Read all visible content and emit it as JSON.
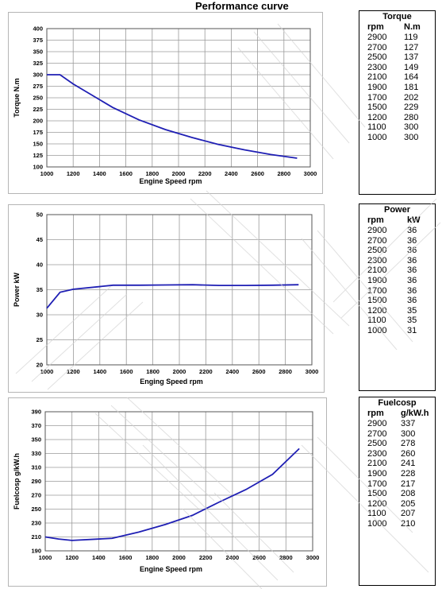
{
  "page_title": "Performance curve",
  "chart_data": [
    {
      "type": "line",
      "xlabel": "Engine Speed rpm",
      "ylabel": "Torque N.m",
      "xlim": [
        1000,
        3000
      ],
      "ylim": [
        100,
        400
      ],
      "xticks": [
        1000,
        1200,
        1400,
        1600,
        1800,
        2000,
        2200,
        2400,
        2600,
        2800,
        3000
      ],
      "yticks": [
        100,
        125,
        150,
        175,
        200,
        225,
        250,
        275,
        300,
        325,
        350,
        375,
        400
      ],
      "grid": true,
      "line_color": "#1f1fb4",
      "x": [
        1000,
        1100,
        1200,
        1500,
        1700,
        1900,
        2100,
        2300,
        2500,
        2700,
        2900
      ],
      "y": [
        300,
        300,
        280,
        229,
        202,
        181,
        164,
        149,
        137,
        127,
        119
      ]
    },
    {
      "type": "line",
      "xlabel": "Enging Speed rpm",
      "ylabel": "Power kW",
      "xlim": [
        1000,
        3000
      ],
      "ylim": [
        20,
        50
      ],
      "xticks": [
        1000,
        1200,
        1400,
        1600,
        1800,
        2000,
        2200,
        2400,
        2600,
        2800,
        3000
      ],
      "yticks": [
        20,
        25,
        30,
        35,
        40,
        45,
        50
      ],
      "grid": true,
      "line_color": "#1f1fb4",
      "x": [
        1000,
        1100,
        1200,
        1500,
        1700,
        1900,
        2100,
        2300,
        2500,
        2700,
        2900
      ],
      "y": [
        31.3,
        34.5,
        35.1,
        35.9,
        35.9,
        35.95,
        36,
        35.85,
        35.85,
        35.9,
        36
      ]
    },
    {
      "type": "line",
      "xlabel": "Engine Speed rpm",
      "ylabel": "Fuelcosp g/kW.h",
      "xlim": [
        1000,
        3000
      ],
      "ylim": [
        190,
        390
      ],
      "xticks": [
        1000,
        1200,
        1400,
        1600,
        1800,
        2000,
        2200,
        2400,
        2600,
        2800,
        3000
      ],
      "yticks": [
        190,
        210,
        230,
        250,
        270,
        290,
        310,
        330,
        350,
        370,
        390
      ],
      "grid": true,
      "line_color": "#1f1fb4",
      "x": [
        1000,
        1100,
        1200,
        1500,
        1700,
        1900,
        2100,
        2300,
        2500,
        2700,
        2900
      ],
      "y": [
        210,
        207,
        205,
        208,
        217,
        228,
        241,
        260,
        278,
        300,
        337
      ]
    }
  ],
  "tables": [
    {
      "title": "Torque",
      "headers": [
        "rpm",
        "N.m"
      ],
      "rows": [
        [
          "2900",
          "119"
        ],
        [
          "2700",
          "127"
        ],
        [
          "2500",
          "137"
        ],
        [
          "2300",
          "149"
        ],
        [
          "2100",
          "164"
        ],
        [
          "1900",
          "181"
        ],
        [
          "1700",
          "202"
        ],
        [
          "1500",
          "229"
        ],
        [
          "1200",
          "280"
        ],
        [
          "1100",
          "300"
        ],
        [
          "1000",
          "300"
        ]
      ]
    },
    {
      "title": "Power",
      "headers": [
        "rpm",
        "kW"
      ],
      "rows": [
        [
          "2900",
          "36"
        ],
        [
          "2700",
          "36"
        ],
        [
          "2500",
          "36"
        ],
        [
          "2300",
          "36"
        ],
        [
          "2100",
          "36"
        ],
        [
          "1900",
          "36"
        ],
        [
          "1700",
          "36"
        ],
        [
          "1500",
          "36"
        ],
        [
          "1200",
          "35"
        ],
        [
          "1100",
          "35"
        ],
        [
          "1000",
          "31"
        ]
      ]
    },
    {
      "title": "Fuelcosp",
      "headers": [
        "rpm",
        "g/kW.h"
      ],
      "rows": [
        [
          "2900",
          "337"
        ],
        [
          "2700",
          "300"
        ],
        [
          "2500",
          "278"
        ],
        [
          "2300",
          "260"
        ],
        [
          "2100",
          "241"
        ],
        [
          "1900",
          "228"
        ],
        [
          "1700",
          "217"
        ],
        [
          "1500",
          "208"
        ],
        [
          "1200",
          "205"
        ],
        [
          "1100",
          "207"
        ],
        [
          "1000",
          "210"
        ]
      ]
    }
  ]
}
